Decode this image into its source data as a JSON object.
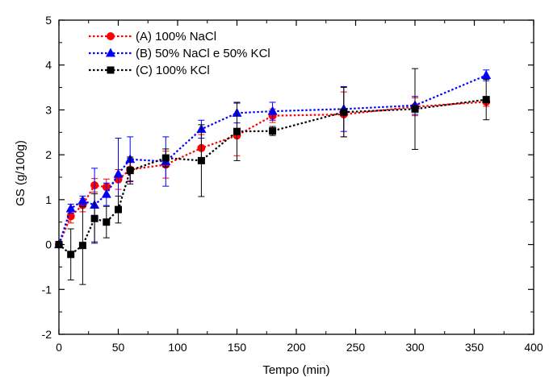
{
  "chart_data": {
    "type": "line",
    "title": "",
    "xlabel": "Tempo (min)",
    "ylabel": "GS (g/100g)",
    "xlim": [
      0,
      400
    ],
    "ylim": [
      -2,
      5
    ],
    "xticks": [
      0,
      50,
      100,
      150,
      200,
      250,
      300,
      350,
      400
    ],
    "yticks": [
      -2,
      -1,
      0,
      1,
      2,
      3,
      4,
      5
    ],
    "grid": false,
    "legend_position": "top-left",
    "series": [
      {
        "name": "(A) 100% NaCl",
        "color": "#ff0000",
        "marker": "circle",
        "x": [
          0,
          10,
          20,
          30,
          40,
          50,
          60,
          90,
          120,
          150,
          180,
          240,
          300,
          360
        ],
        "y": [
          0,
          0.63,
          0.88,
          1.32,
          1.28,
          1.45,
          1.67,
          1.78,
          2.15,
          2.43,
          2.87,
          2.9,
          3.07,
          3.18
        ],
        "err": [
          0,
          0.15,
          0.15,
          0.15,
          0.18,
          0.22,
          0.25,
          0.3,
          0.3,
          0.45,
          0.15,
          0.5,
          0.2,
          0.1
        ]
      },
      {
        "name": "(B) 50% NaCl e 50% KCl",
        "color": "#0000ff",
        "marker": "triangle",
        "x": [
          0,
          10,
          20,
          30,
          40,
          50,
          60,
          90,
          120,
          150,
          180,
          240,
          300,
          360
        ],
        "y": [
          0,
          0.8,
          0.98,
          0.88,
          1.12,
          1.57,
          1.9,
          1.85,
          2.57,
          2.93,
          2.97,
          3.02,
          3.1,
          3.77
        ],
        "err": [
          0,
          0.1,
          0.1,
          0.82,
          0.25,
          0.8,
          0.5,
          0.55,
          0.2,
          0.22,
          0.2,
          0.5,
          0.2,
          0.12
        ]
      },
      {
        "name": "(C) 100% KCl",
        "color": "#000000",
        "marker": "square",
        "x": [
          0,
          10,
          20,
          30,
          40,
          50,
          60,
          90,
          120,
          150,
          180,
          240,
          300,
          360
        ],
        "y": [
          0,
          -0.22,
          -0.02,
          0.58,
          0.5,
          0.78,
          1.65,
          1.93,
          1.87,
          2.52,
          2.53,
          2.95,
          3.02,
          3.23
        ],
        "err": [
          0,
          0.57,
          0.87,
          0.55,
          0.35,
          0.3,
          0.3,
          0.2,
          0.8,
          0.65,
          0.1,
          0.55,
          0.9,
          0.45
        ]
      }
    ]
  }
}
